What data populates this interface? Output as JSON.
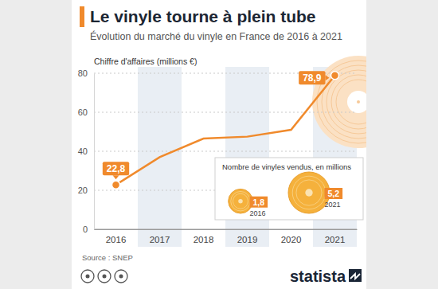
{
  "chart_data": [
    {
      "type": "line",
      "title": "Le vinyle tourne à plein tube",
      "subtitle": "Évolution du marché du vinyle en France de 2016 à 2021",
      "y_label": "Chiffre d'affaires (millions €)",
      "categories": [
        "2016",
        "2017",
        "2018",
        "2019",
        "2020",
        "2021"
      ],
      "values": [
        22.8,
        37,
        46.5,
        47.5,
        51,
        78.9
      ],
      "value_labels": [
        "22,8",
        null,
        null,
        null,
        null,
        "78,9"
      ],
      "data_labels": true,
      "color": "#f08a2c",
      "ylim": [
        0,
        80
      ],
      "yticks": [
        0,
        20,
        40,
        60,
        80
      ],
      "grid": true,
      "source": "Source : SNEP",
      "brand": "statista"
    },
    {
      "type": "bubble",
      "title": "Nombre de vinyles vendus, en millions",
      "categories": [
        "2016",
        "2021"
      ],
      "values": [
        1.8,
        5.2
      ],
      "value_labels": [
        "1,8",
        "5,2"
      ],
      "data_labels": true,
      "color": "#f5b13c"
    }
  ]
}
